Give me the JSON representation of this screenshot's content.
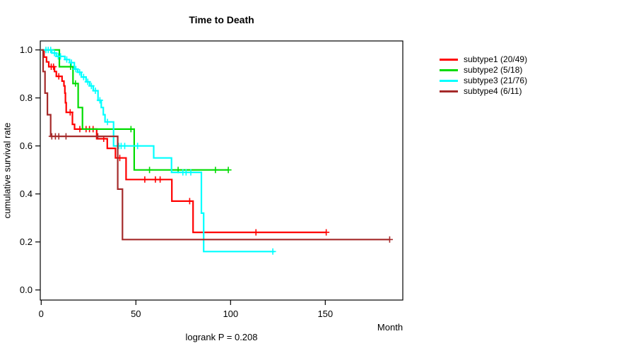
{
  "title": "Time to Death",
  "x_axis_label": "Month",
  "y_axis_label": "cumulative survival rate",
  "footer_annotation": "logrank P = 0.208",
  "frame_color": "#000000",
  "legend": {
    "position": "right",
    "entries": [
      {
        "label": "subtype1 (20/49)",
        "color": "#FF0000"
      },
      {
        "label": "subtype2 (5/18)",
        "color": "#00DC00"
      },
      {
        "label": "subtype3 (21/76)",
        "color": "#00FFFF"
      },
      {
        "label": "subtype4 (6/11)",
        "color": "#A52A2A"
      }
    ]
  },
  "chart_data": {
    "type": "line",
    "variant": "kaplan-meier-step",
    "title": "Time to Death",
    "xlabel": "Month",
    "ylabel": "cumulative survival rate",
    "annotation": "logrank P = 0.208",
    "xlim": [
      0,
      191
    ],
    "ylim": [
      0,
      1.0
    ],
    "x_ticks": [
      0,
      50,
      100,
      150
    ],
    "y_ticks": [
      0.0,
      0.2,
      0.4,
      0.6,
      0.8,
      1.0
    ],
    "grid": false,
    "legend_position": "right",
    "series": [
      {
        "name": "subtype1 (20/49)",
        "events": 20,
        "n": 49,
        "color": "#FF0000",
        "steps": [
          [
            0,
            1.0
          ],
          [
            1.5,
            0.97
          ],
          [
            2.8,
            0.95
          ],
          [
            4,
            0.93
          ],
          [
            7,
            0.91
          ],
          [
            8,
            0.89
          ],
          [
            11,
            0.87
          ],
          [
            12,
            0.85
          ],
          [
            12.5,
            0.82
          ],
          [
            12.8,
            0.78
          ],
          [
            13.2,
            0.74
          ],
          [
            16.5,
            0.69
          ],
          [
            17.6,
            0.67
          ],
          [
            29.3,
            0.63
          ],
          [
            34.9,
            0.59
          ],
          [
            39.2,
            0.55
          ],
          [
            44.8,
            0.46
          ],
          [
            69,
            0.37
          ],
          [
            80.2,
            0.24
          ]
        ],
        "end": 150.5,
        "censors": [
          [
            5.3,
            0.93
          ],
          [
            6.5,
            0.93
          ],
          [
            9.3,
            0.89
          ],
          [
            15.3,
            0.74
          ],
          [
            20.4,
            0.67
          ],
          [
            23.7,
            0.67
          ],
          [
            25.5,
            0.67
          ],
          [
            27.4,
            0.67
          ],
          [
            33,
            0.63
          ],
          [
            41.5,
            0.55
          ],
          [
            54.7,
            0.46
          ],
          [
            60.3,
            0.46
          ],
          [
            62.8,
            0.46
          ],
          [
            78.4,
            0.37
          ],
          [
            113.4,
            0.24
          ],
          [
            150.5,
            0.24
          ]
        ]
      },
      {
        "name": "subtype2 (5/18)",
        "events": 5,
        "n": 18,
        "color": "#00DC00",
        "steps": [
          [
            0,
            1.0
          ],
          [
            9.6,
            0.93
          ],
          [
            16.8,
            0.86
          ],
          [
            19.5,
            0.76
          ],
          [
            21.8,
            0.67
          ],
          [
            49.1,
            0.5
          ]
        ],
        "end": 98.8,
        "censors": [
          [
            15.5,
            0.93
          ],
          [
            18.1,
            0.86
          ],
          [
            47.4,
            0.67
          ],
          [
            57.2,
            0.5
          ],
          [
            72.3,
            0.5
          ],
          [
            92,
            0.5
          ],
          [
            98.8,
            0.5
          ]
        ]
      },
      {
        "name": "subtype3 (21/76)",
        "events": 21,
        "n": 76,
        "color": "#00FFFF",
        "steps": [
          [
            0,
            1.0
          ],
          [
            5.6,
            0.987
          ],
          [
            8,
            0.973
          ],
          [
            12.5,
            0.96
          ],
          [
            15,
            0.947
          ],
          [
            17.5,
            0.92
          ],
          [
            19.3,
            0.907
          ],
          [
            21.2,
            0.887
          ],
          [
            23.7,
            0.867
          ],
          [
            25.6,
            0.85
          ],
          [
            27.5,
            0.83
          ],
          [
            30,
            0.79
          ],
          [
            31.7,
            0.76
          ],
          [
            32.8,
            0.73
          ],
          [
            33.7,
            0.7
          ],
          [
            38.2,
            0.6
          ],
          [
            59.4,
            0.55
          ],
          [
            68.8,
            0.49
          ],
          [
            84.6,
            0.32
          ],
          [
            85.8,
            0.16
          ]
        ],
        "end": 123.2,
        "censors": [
          [
            2.5,
            1.0
          ],
          [
            3.7,
            1.0
          ],
          [
            5,
            1.0
          ],
          [
            7,
            0.987
          ],
          [
            9,
            0.973
          ],
          [
            10.2,
            0.973
          ],
          [
            13.5,
            0.96
          ],
          [
            16,
            0.947
          ],
          [
            18.3,
            0.92
          ],
          [
            20.3,
            0.907
          ],
          [
            22.4,
            0.887
          ],
          [
            24.6,
            0.867
          ],
          [
            26.5,
            0.85
          ],
          [
            28.6,
            0.83
          ],
          [
            31,
            0.79
          ],
          [
            35,
            0.7
          ],
          [
            40.9,
            0.6
          ],
          [
            42.2,
            0.6
          ],
          [
            44.1,
            0.6
          ],
          [
            50.9,
            0.6
          ],
          [
            74.8,
            0.49
          ],
          [
            76.5,
            0.49
          ],
          [
            79,
            0.49
          ],
          [
            122.3,
            0.16
          ]
        ]
      },
      {
        "name": "subtype4 (6/11)",
        "events": 6,
        "n": 11,
        "color": "#A52A2A",
        "steps": [
          [
            0,
            1.0
          ],
          [
            1,
            0.91
          ],
          [
            2,
            0.82
          ],
          [
            3.3,
            0.73
          ],
          [
            5,
            0.64
          ],
          [
            40.4,
            0.42
          ],
          [
            42.9,
            0.21
          ]
        ],
        "end": 184,
        "censors": [
          [
            5.6,
            0.64
          ],
          [
            7.5,
            0.64
          ],
          [
            9.3,
            0.64
          ],
          [
            13.1,
            0.64
          ],
          [
            29.9,
            0.64
          ],
          [
            184,
            0.21
          ]
        ]
      }
    ]
  }
}
